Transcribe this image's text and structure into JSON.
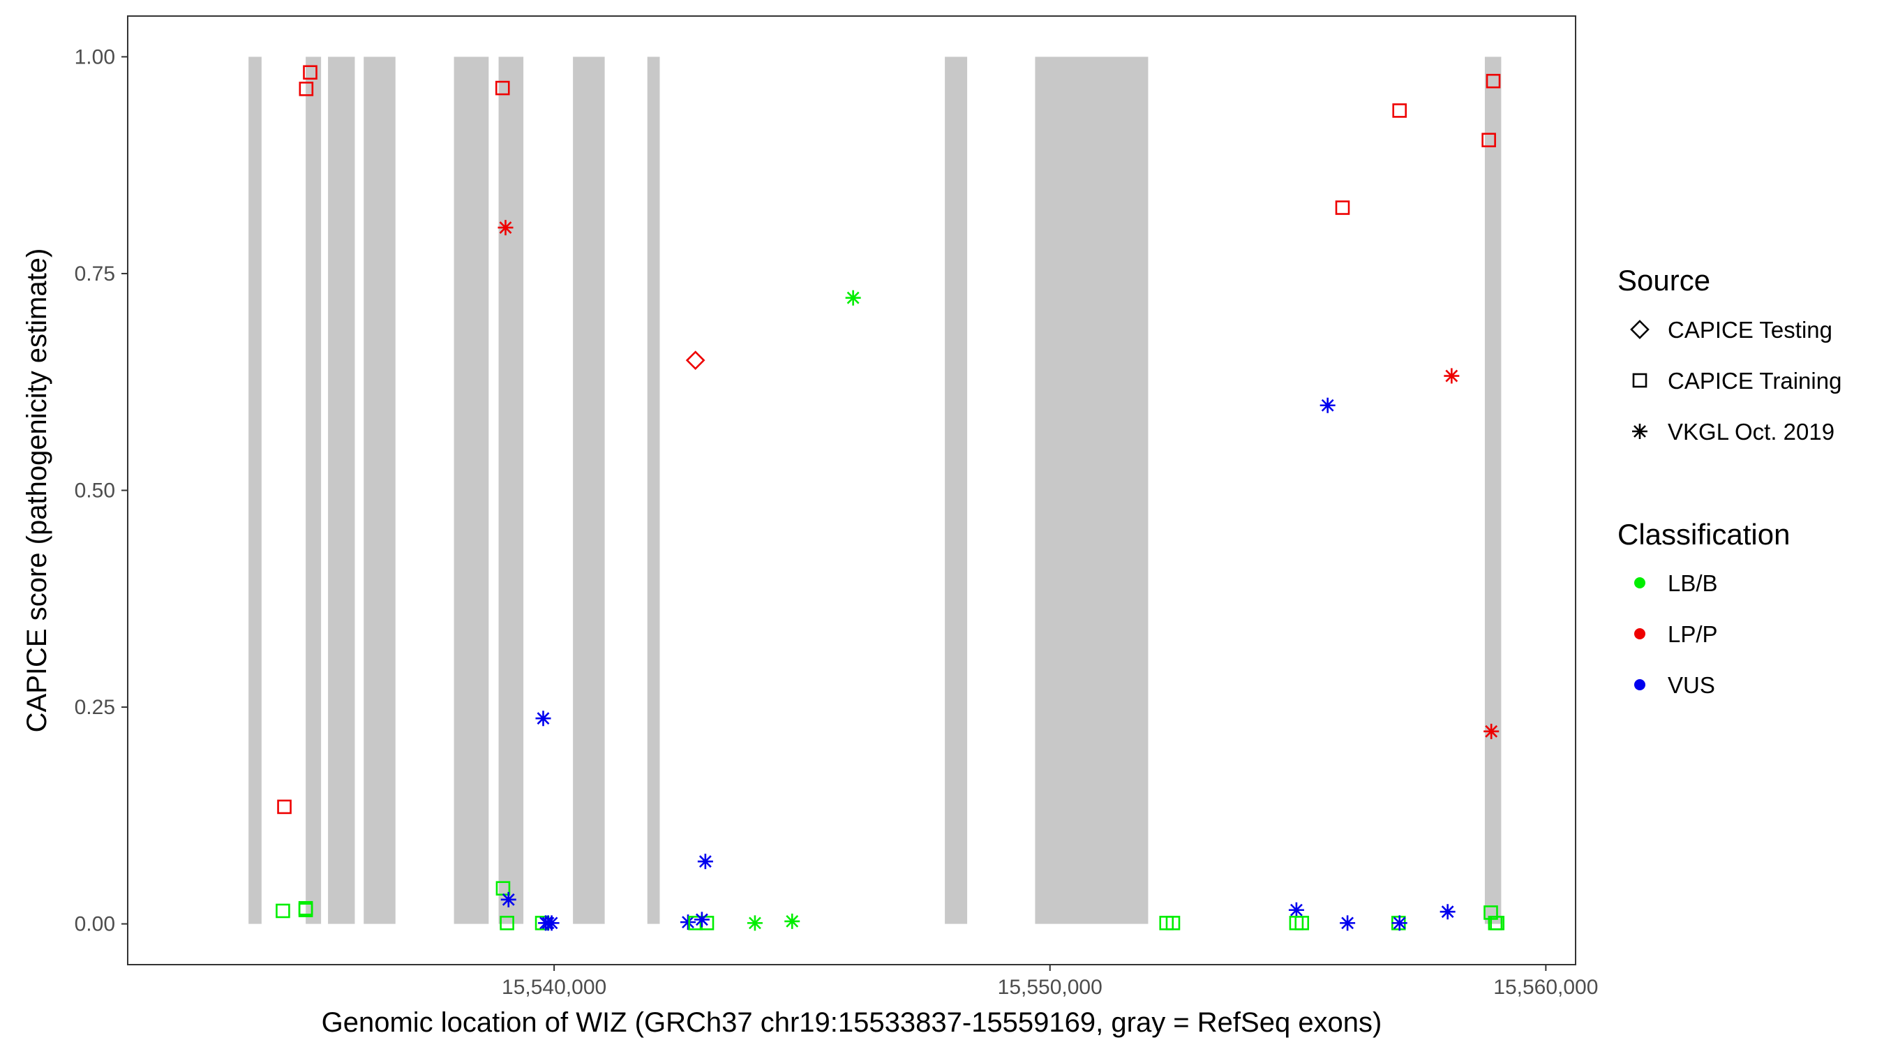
{
  "chart_data": {
    "type": "scatter",
    "title": "",
    "xlabel": "Genomic location of WIZ (GRCh37 chr19:15533837-15559169, gray = RefSeq exons)",
    "ylabel": "CAPICE score (pathogenicity estimate)",
    "xlim": [
      15531400,
      15560600
    ],
    "ylim": [
      -0.047,
      1.047
    ],
    "x_ticks": [
      15540000,
      15550000,
      15560000
    ],
    "x_tick_labels": [
      "15,540,000",
      "15,550,000",
      "15,560,000"
    ],
    "y_ticks": [
      0,
      0.25,
      0.5,
      0.75,
      1.0
    ],
    "y_tick_labels": [
      "0.00",
      "0.25",
      "0.50",
      "0.75",
      "1.00"
    ],
    "grid": false,
    "legend_position": "right",
    "colors": {
      "LB/B": "#00ee00",
      "LP/P": "#ee0000",
      "VUS": "#0000ee",
      "exon": "#c8c8c8"
    },
    "exons": [
      [
        15533837,
        15534100
      ],
      [
        15534990,
        15535300
      ],
      [
        15535440,
        15535980
      ],
      [
        15536160,
        15536800
      ],
      [
        15537980,
        15538680
      ],
      [
        15538880,
        15539380
      ],
      [
        15540380,
        15541020
      ],
      [
        15541880,
        15542130
      ],
      [
        15547880,
        15548330
      ],
      [
        15549700,
        15551980
      ],
      [
        15558770,
        15559100
      ]
    ],
    "legend": {
      "source_title": "Source",
      "source_items": [
        {
          "label": "CAPICE Testing",
          "shape": "diamond"
        },
        {
          "label": "CAPICE Training",
          "shape": "square"
        },
        {
          "label": "VKGL Oct. 2019",
          "shape": "asterisk"
        }
      ],
      "class_title": "Classification",
      "class_items": [
        {
          "label": "LB/B",
          "color": "#00ee00"
        },
        {
          "label": "LP/P",
          "color": "#ee0000"
        },
        {
          "label": "VUS",
          "color": "#0000ee"
        }
      ]
    },
    "points": [
      {
        "x": 15535080,
        "y": 0.982,
        "source": "CAPICE Training",
        "class": "LP/P"
      },
      {
        "x": 15535000,
        "y": 0.963,
        "source": "CAPICE Training",
        "class": "LP/P"
      },
      {
        "x": 15534560,
        "y": 0.135,
        "source": "CAPICE Training",
        "class": "LP/P"
      },
      {
        "x": 15534530,
        "y": 0.015,
        "source": "CAPICE Training",
        "class": "LB/B"
      },
      {
        "x": 15534990,
        "y": 0.018,
        "source": "CAPICE Training",
        "class": "LB/B"
      },
      {
        "x": 15534990,
        "y": 0.016,
        "source": "CAPICE Training",
        "class": "LB/B"
      },
      {
        "x": 15538960,
        "y": 0.964,
        "source": "CAPICE Training",
        "class": "LP/P"
      },
      {
        "x": 15539020,
        "y": 0.803,
        "source": "VKGL Oct. 2019",
        "class": "LP/P"
      },
      {
        "x": 15538970,
        "y": 0.041,
        "source": "CAPICE Training",
        "class": "LB/B"
      },
      {
        "x": 15539080,
        "y": 0.028,
        "source": "VKGL Oct. 2019",
        "class": "VUS"
      },
      {
        "x": 15539050,
        "y": 0.001,
        "source": "CAPICE Training",
        "class": "LB/B"
      },
      {
        "x": 15539780,
        "y": 0.237,
        "source": "VKGL Oct. 2019",
        "class": "VUS"
      },
      {
        "x": 15539760,
        "y": 0.001,
        "source": "CAPICE Training",
        "class": "LB/B"
      },
      {
        "x": 15539830,
        "y": 0.001,
        "source": "VKGL Oct. 2019",
        "class": "VUS"
      },
      {
        "x": 15539880,
        "y": 0.001,
        "source": "VKGL Oct. 2019",
        "class": "VUS"
      },
      {
        "x": 15539950,
        "y": 0.001,
        "source": "VKGL Oct. 2019",
        "class": "VUS"
      },
      {
        "x": 15542850,
        "y": 0.65,
        "source": "CAPICE Testing",
        "class": "LP/P"
      },
      {
        "x": 15542700,
        "y": 0.002,
        "source": "VKGL Oct. 2019",
        "class": "VUS"
      },
      {
        "x": 15542850,
        "y": 0.001,
        "source": "CAPICE Training",
        "class": "LB/B"
      },
      {
        "x": 15543080,
        "y": 0.001,
        "source": "CAPICE Training",
        "class": "LB/B"
      },
      {
        "x": 15542980,
        "y": 0.005,
        "source": "VKGL Oct. 2019",
        "class": "VUS"
      },
      {
        "x": 15543050,
        "y": 0.072,
        "source": "VKGL Oct. 2019",
        "class": "VUS"
      },
      {
        "x": 15544050,
        "y": 0.001,
        "source": "VKGL Oct. 2019",
        "class": "LB/B"
      },
      {
        "x": 15544800,
        "y": 0.003,
        "source": "VKGL Oct. 2019",
        "class": "LB/B"
      },
      {
        "x": 15546030,
        "y": 0.722,
        "source": "VKGL Oct. 2019",
        "class": "LB/B"
      },
      {
        "x": 15552350,
        "y": 0.001,
        "source": "CAPICE Training",
        "class": "LB/B"
      },
      {
        "x": 15552480,
        "y": 0.001,
        "source": "CAPICE Training",
        "class": "LB/B"
      },
      {
        "x": 15554970,
        "y": 0.016,
        "source": "VKGL Oct. 2019",
        "class": "VUS"
      },
      {
        "x": 15554970,
        "y": 0.001,
        "source": "CAPICE Training",
        "class": "LB/B"
      },
      {
        "x": 15555080,
        "y": 0.001,
        "source": "CAPICE Training",
        "class": "LB/B"
      },
      {
        "x": 15555900,
        "y": 0.826,
        "source": "CAPICE Training",
        "class": "LP/P"
      },
      {
        "x": 15555600,
        "y": 0.598,
        "source": "VKGL Oct. 2019",
        "class": "VUS"
      },
      {
        "x": 15556000,
        "y": 0.001,
        "source": "VKGL Oct. 2019",
        "class": "VUS"
      },
      {
        "x": 15557050,
        "y": 0.938,
        "source": "CAPICE Training",
        "class": "LP/P"
      },
      {
        "x": 15557030,
        "y": 0.001,
        "source": "CAPICE Training",
        "class": "LB/B"
      },
      {
        "x": 15557050,
        "y": 0.001,
        "source": "VKGL Oct. 2019",
        "class": "VUS"
      },
      {
        "x": 15558100,
        "y": 0.632,
        "source": "VKGL Oct. 2019",
        "class": "LP/P"
      },
      {
        "x": 15558020,
        "y": 0.014,
        "source": "VKGL Oct. 2019",
        "class": "VUS"
      },
      {
        "x": 15558850,
        "y": 0.904,
        "source": "CAPICE Training",
        "class": "LP/P"
      },
      {
        "x": 15558940,
        "y": 0.972,
        "source": "CAPICE Training",
        "class": "LP/P"
      },
      {
        "x": 15558900,
        "y": 0.222,
        "source": "VKGL Oct. 2019",
        "class": "LP/P"
      },
      {
        "x": 15558890,
        "y": 0.013,
        "source": "CAPICE Training",
        "class": "LB/B"
      },
      {
        "x": 15558980,
        "y": 0.001,
        "source": "CAPICE Training",
        "class": "LB/B"
      },
      {
        "x": 15559020,
        "y": 0.001,
        "source": "CAPICE Training",
        "class": "LB/B"
      }
    ]
  }
}
